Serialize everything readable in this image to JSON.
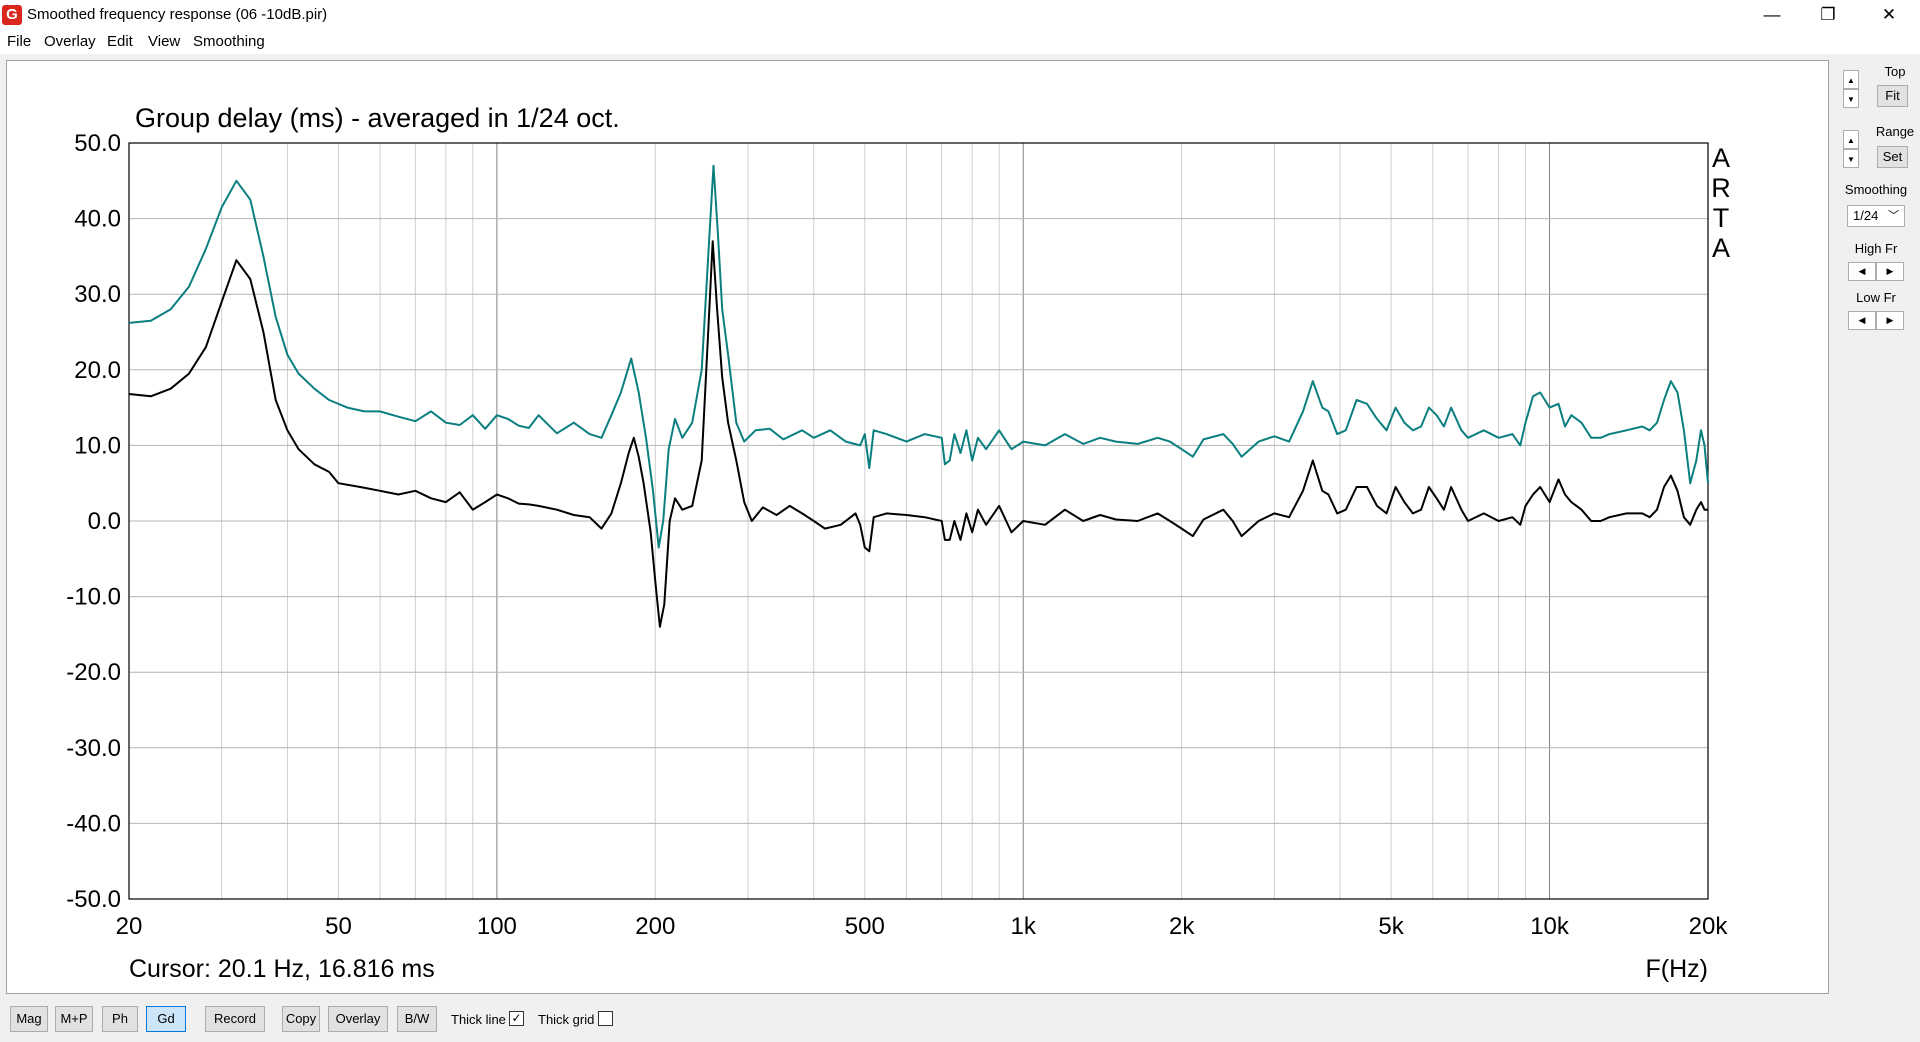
{
  "window": {
    "title": "Smoothed frequency response (06 -10dB.pir)",
    "icon_text": "G",
    "minimize": "—",
    "restore": "❐",
    "close": "✕"
  },
  "menu": [
    "File",
    "Overlay",
    "Edit",
    "View",
    "Smoothing"
  ],
  "right_panel": {
    "top_label": "Top",
    "fit_label": "Fit",
    "range_label": "Range",
    "set_label": "Set",
    "smoothing_label": "Smoothing",
    "smoothing_value": "1/24",
    "high_fr_label": "High Fr",
    "low_fr_label": "Low Fr",
    "up": "▲",
    "down": "▼",
    "left": "◀",
    "right": "▶"
  },
  "bottom_bar": {
    "buttons": [
      "Mag",
      "M+P",
      "Ph",
      "Gd",
      "Record",
      "Copy",
      "Overlay",
      "B/W"
    ],
    "active": "Gd",
    "thick_line_label": "Thick line",
    "thick_line_checked": true,
    "thick_grid_label": "Thick grid",
    "thick_grid_checked": false
  },
  "chart_data": {
    "type": "line",
    "title": "Group delay (ms) - averaged in 1/24 oct.",
    "xlabel": "F(Hz)",
    "ylabel": "",
    "watermark": "ARTA",
    "cursor_text": "Cursor: 20.1 Hz, 16.816 ms",
    "xscale": "log",
    "xlim": [
      20,
      20000
    ],
    "ylim": [
      -50,
      50
    ],
    "ytick_labels": [
      "50.0",
      "40.0",
      "30.0",
      "20.0",
      "10.0",
      "0.0",
      "-10.0",
      "-20.0",
      "-30.0",
      "-40.0",
      "-50.0"
    ],
    "ytick_values": [
      50,
      40,
      30,
      20,
      10,
      0,
      -10,
      -20,
      -30,
      -40,
      -50
    ],
    "xtick_labels": [
      "20",
      "50",
      "100",
      "200",
      "500",
      "1k",
      "2k",
      "5k",
      "10k",
      "20k"
    ],
    "xtick_values": [
      20,
      50,
      100,
      200,
      500,
      1000,
      2000,
      5000,
      10000,
      20000
    ],
    "grid": true,
    "series": [
      {
        "color": "#0b7f80",
        "points": [
          [
            20,
            26.2
          ],
          [
            22,
            26.5
          ],
          [
            24,
            28
          ],
          [
            26,
            31
          ],
          [
            28,
            36
          ],
          [
            30,
            41.5
          ],
          [
            32,
            45
          ],
          [
            34,
            42.5
          ],
          [
            36,
            35
          ],
          [
            38,
            27
          ],
          [
            40,
            22
          ],
          [
            42,
            19.5
          ],
          [
            45,
            17.5
          ],
          [
            48,
            16
          ],
          [
            52,
            15
          ],
          [
            56,
            14.5
          ],
          [
            60,
            14.5
          ],
          [
            65,
            13.8
          ],
          [
            70,
            13.2
          ],
          [
            75,
            14.5
          ],
          [
            80,
            13
          ],
          [
            85,
            12.7
          ],
          [
            90,
            14
          ],
          [
            95,
            12.2
          ],
          [
            100,
            14
          ],
          [
            105,
            13.5
          ],
          [
            110,
            12.6
          ],
          [
            115,
            12.3
          ],
          [
            120,
            14
          ],
          [
            130,
            11.6
          ],
          [
            140,
            13
          ],
          [
            150,
            11.5
          ],
          [
            158,
            11
          ],
          [
            165,
            14
          ],
          [
            172,
            17
          ],
          [
            180,
            21.5
          ],
          [
            186,
            17
          ],
          [
            192,
            11
          ],
          [
            198,
            4
          ],
          [
            203,
            -3.5
          ],
          [
            207,
            0
          ],
          [
            212,
            9.5
          ],
          [
            218,
            13.5
          ],
          [
            225,
            11
          ],
          [
            235,
            13
          ],
          [
            245,
            20
          ],
          [
            252,
            35
          ],
          [
            258,
            47
          ],
          [
            263,
            38
          ],
          [
            268,
            28
          ],
          [
            275,
            22
          ],
          [
            285,
            13
          ],
          [
            295,
            10.5
          ],
          [
            310,
            12
          ],
          [
            330,
            12.2
          ],
          [
            350,
            10.8
          ],
          [
            380,
            12
          ],
          [
            400,
            11
          ],
          [
            430,
            12
          ],
          [
            460,
            10.5
          ],
          [
            490,
            10
          ],
          [
            500,
            11.5
          ],
          [
            510,
            7
          ],
          [
            520,
            12
          ],
          [
            550,
            11.5
          ],
          [
            600,
            10.5
          ],
          [
            650,
            11.5
          ],
          [
            700,
            11
          ],
          [
            710,
            7.5
          ],
          [
            725,
            8
          ],
          [
            740,
            11.5
          ],
          [
            760,
            9
          ],
          [
            780,
            12
          ],
          [
            800,
            8
          ],
          [
            820,
            11
          ],
          [
            850,
            9.5
          ],
          [
            900,
            12
          ],
          [
            950,
            9.5
          ],
          [
            1000,
            10.5
          ],
          [
            1100,
            10
          ],
          [
            1200,
            11.5
          ],
          [
            1300,
            10.2
          ],
          [
            1400,
            11
          ],
          [
            1500,
            10.5
          ],
          [
            1650,
            10.2
          ],
          [
            1800,
            11
          ],
          [
            1900,
            10.5
          ],
          [
            2000,
            9.5
          ],
          [
            2100,
            8.5
          ],
          [
            2200,
            10.8
          ],
          [
            2400,
            11.5
          ],
          [
            2500,
            10.2
          ],
          [
            2600,
            8.5
          ],
          [
            2800,
            10.5
          ],
          [
            3000,
            11.2
          ],
          [
            3200,
            10.5
          ],
          [
            3400,
            14.5
          ],
          [
            3550,
            18.5
          ],
          [
            3700,
            15
          ],
          [
            3800,
            14.5
          ],
          [
            3950,
            11.5
          ],
          [
            4100,
            12
          ],
          [
            4300,
            16
          ],
          [
            4500,
            15.5
          ],
          [
            4700,
            13.5
          ],
          [
            4900,
            12
          ],
          [
            5100,
            15
          ],
          [
            5300,
            13
          ],
          [
            5500,
            12
          ],
          [
            5700,
            12.5
          ],
          [
            5900,
            15
          ],
          [
            6100,
            14
          ],
          [
            6300,
            12.5
          ],
          [
            6500,
            15
          ],
          [
            6800,
            12
          ],
          [
            7000,
            11
          ],
          [
            7500,
            12
          ],
          [
            8000,
            11
          ],
          [
            8500,
            11.5
          ],
          [
            8800,
            10
          ],
          [
            9000,
            13
          ],
          [
            9300,
            16.5
          ],
          [
            9600,
            17
          ],
          [
            10000,
            15
          ],
          [
            10400,
            15.5
          ],
          [
            10700,
            12.5
          ],
          [
            11000,
            14
          ],
          [
            11500,
            13
          ],
          [
            12000,
            11
          ],
          [
            12500,
            11
          ],
          [
            13000,
            11.5
          ],
          [
            14000,
            12
          ],
          [
            15000,
            12.5
          ],
          [
            15500,
            12
          ],
          [
            16000,
            13
          ],
          [
            16500,
            16
          ],
          [
            17000,
            18.5
          ],
          [
            17500,
            17
          ],
          [
            18000,
            12
          ],
          [
            18500,
            5
          ],
          [
            19000,
            8
          ],
          [
            19400,
            12
          ],
          [
            19700,
            10
          ],
          [
            20000,
            5
          ]
        ]
      },
      {
        "color": "#000000",
        "points": [
          [
            20,
            16.8
          ],
          [
            22,
            16.5
          ],
          [
            24,
            17.5
          ],
          [
            26,
            19.5
          ],
          [
            28,
            23
          ],
          [
            30,
            29
          ],
          [
            32,
            34.5
          ],
          [
            34,
            32
          ],
          [
            36,
            25
          ],
          [
            38,
            16
          ],
          [
            40,
            12
          ],
          [
            42,
            9.5
          ],
          [
            45,
            7.5
          ],
          [
            48,
            6.5
          ],
          [
            50,
            5
          ],
          [
            55,
            4.5
          ],
          [
            60,
            4
          ],
          [
            65,
            3.5
          ],
          [
            70,
            4
          ],
          [
            75,
            3
          ],
          [
            80,
            2.5
          ],
          [
            85,
            3.8
          ],
          [
            90,
            1.5
          ],
          [
            95,
            2.5
          ],
          [
            100,
            3.5
          ],
          [
            105,
            3
          ],
          [
            110,
            2.3
          ],
          [
            115,
            2.2
          ],
          [
            120,
            2
          ],
          [
            130,
            1.5
          ],
          [
            140,
            0.8
          ],
          [
            150,
            0.5
          ],
          [
            158,
            -1
          ],
          [
            165,
            1
          ],
          [
            172,
            5
          ],
          [
            178,
            9
          ],
          [
            182,
            11
          ],
          [
            186,
            8.5
          ],
          [
            190,
            5
          ],
          [
            196,
            -1.5
          ],
          [
            200,
            -8
          ],
          [
            204,
            -14
          ],
          [
            208,
            -11
          ],
          [
            213,
            0
          ],
          [
            218,
            3
          ],
          [
            225,
            1.5
          ],
          [
            235,
            2
          ],
          [
            245,
            8
          ],
          [
            252,
            25
          ],
          [
            257,
            37
          ],
          [
            262,
            28
          ],
          [
            268,
            19
          ],
          [
            275,
            13
          ],
          [
            285,
            8
          ],
          [
            295,
            2.5
          ],
          [
            305,
            0
          ],
          [
            320,
            1.8
          ],
          [
            340,
            0.8
          ],
          [
            360,
            2
          ],
          [
            380,
            1
          ],
          [
            400,
            0
          ],
          [
            420,
            -1
          ],
          [
            450,
            -0.5
          ],
          [
            480,
            1
          ],
          [
            490,
            -0.5
          ],
          [
            500,
            -3.5
          ],
          [
            510,
            -4
          ],
          [
            520,
            0.5
          ],
          [
            550,
            1
          ],
          [
            600,
            0.8
          ],
          [
            650,
            0.5
          ],
          [
            700,
            0
          ],
          [
            710,
            -2.5
          ],
          [
            725,
            -2.5
          ],
          [
            740,
            0
          ],
          [
            760,
            -2.5
          ],
          [
            780,
            1
          ],
          [
            800,
            -1.5
          ],
          [
            820,
            1.5
          ],
          [
            850,
            -0.5
          ],
          [
            900,
            2
          ],
          [
            950,
            -1.5
          ],
          [
            1000,
            0
          ],
          [
            1100,
            -0.5
          ],
          [
            1200,
            1.5
          ],
          [
            1300,
            0
          ],
          [
            1400,
            0.8
          ],
          [
            1500,
            0.2
          ],
          [
            1650,
            0
          ],
          [
            1800,
            1
          ],
          [
            1900,
            0
          ],
          [
            2000,
            -1
          ],
          [
            2100,
            -2
          ],
          [
            2200,
            0.2
          ],
          [
            2400,
            1.5
          ],
          [
            2500,
            0
          ],
          [
            2600,
            -2
          ],
          [
            2800,
            0
          ],
          [
            3000,
            1
          ],
          [
            3200,
            0.5
          ],
          [
            3400,
            4
          ],
          [
            3550,
            8
          ],
          [
            3700,
            4
          ],
          [
            3800,
            3.5
          ],
          [
            3950,
            1
          ],
          [
            4100,
            1.5
          ],
          [
            4300,
            4.5
          ],
          [
            4500,
            4.5
          ],
          [
            4700,
            2
          ],
          [
            4900,
            1
          ],
          [
            5100,
            4.5
          ],
          [
            5300,
            2.5
          ],
          [
            5500,
            1
          ],
          [
            5700,
            1.5
          ],
          [
            5900,
            4.5
          ],
          [
            6100,
            3
          ],
          [
            6300,
            1.5
          ],
          [
            6500,
            4.5
          ],
          [
            6800,
            1.5
          ],
          [
            7000,
            0
          ],
          [
            7500,
            1
          ],
          [
            8000,
            0
          ],
          [
            8500,
            0.5
          ],
          [
            8800,
            -0.5
          ],
          [
            9000,
            2
          ],
          [
            9300,
            3.5
          ],
          [
            9600,
            4.5
          ],
          [
            10000,
            2.5
          ],
          [
            10400,
            5.5
          ],
          [
            10700,
            3.5
          ],
          [
            11000,
            2.5
          ],
          [
            11500,
            1.5
          ],
          [
            12000,
            0
          ],
          [
            12500,
            0
          ],
          [
            13000,
            0.5
          ],
          [
            14000,
            1
          ],
          [
            15000,
            1
          ],
          [
            15500,
            0.5
          ],
          [
            16000,
            1.5
          ],
          [
            16500,
            4.5
          ],
          [
            17000,
            6
          ],
          [
            17500,
            4
          ],
          [
            18000,
            0.5
          ],
          [
            18500,
            -0.5
          ],
          [
            19000,
            1.5
          ],
          [
            19400,
            2.5
          ],
          [
            19700,
            1.5
          ],
          [
            20000,
            1.5
          ]
        ]
      }
    ]
  }
}
